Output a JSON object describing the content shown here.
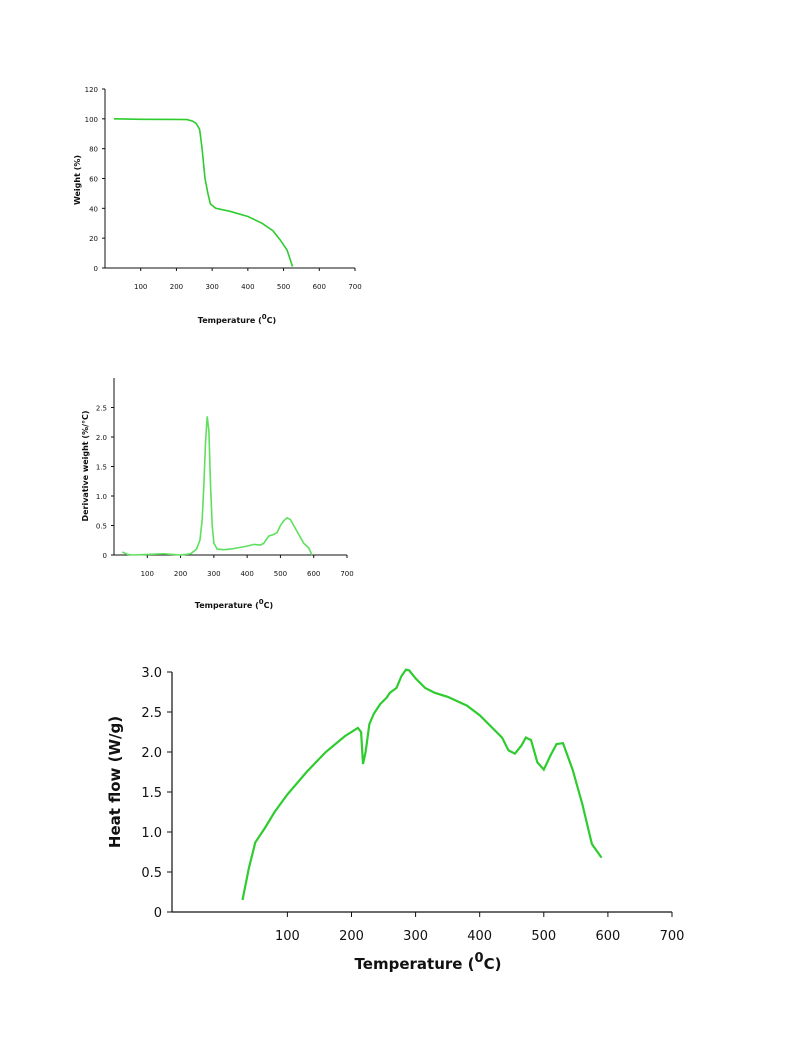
{
  "colors": {
    "series": "#2ecc2e",
    "axis": "#111111"
  },
  "chart_data": [
    {
      "type": "line",
      "title": "",
      "xlabel": "Temperature (",
      "xlabel_sup": "0",
      "xlabel_tail": "C)",
      "ylabel": "Weight (%)",
      "xlim": [
        0,
        700
      ],
      "ylim": [
        0,
        120
      ],
      "xticks": [
        100,
        200,
        300,
        400,
        500,
        600,
        700
      ],
      "yticks": [
        0,
        20,
        40,
        60,
        80,
        100,
        120
      ],
      "grid": false,
      "series": [
        {
          "x": [
            25,
            100,
            200,
            230,
            245,
            255,
            265,
            272,
            280,
            288,
            295,
            310,
            350,
            400,
            440,
            470,
            490,
            510,
            525
          ],
          "y": [
            100,
            99.7,
            99.6,
            99.5,
            98.5,
            97,
            93,
            80,
            60,
            50,
            43,
            40,
            38,
            34.5,
            30,
            25,
            19,
            12,
            1
          ]
        }
      ]
    },
    {
      "type": "line",
      "title": "",
      "xlabel": "Temperature (",
      "xlabel_sup": "0",
      "xlabel_tail": "C)",
      "ylabel": "Derivative weight (%/°C)",
      "xlim": [
        0,
        700
      ],
      "ylim": [
        0,
        3
      ],
      "xticks": [
        100,
        200,
        300,
        400,
        500,
        600,
        700
      ],
      "yticks": [
        0,
        0.5,
        1.0,
        1.5,
        2.0,
        2.5
      ],
      "ytick_labels": [
        "0",
        "0.5",
        "1.0",
        "1.5",
        "2.0",
        "2.5"
      ],
      "grid": false,
      "series": [
        {
          "x": [
            25,
            40,
            60,
            100,
            150,
            200,
            230,
            248,
            258,
            265,
            270,
            275,
            280,
            285,
            290,
            295,
            300,
            310,
            330,
            350,
            400,
            420,
            440,
            450,
            465,
            480,
            490,
            500,
            510,
            520,
            530,
            540,
            555,
            570,
            585,
            595
          ],
          "y": [
            0.05,
            0.01,
            0.0,
            0.01,
            0.02,
            0.0,
            0.02,
            0.1,
            0.25,
            0.6,
            1.2,
            1.9,
            2.35,
            2.1,
            1.2,
            0.5,
            0.2,
            0.1,
            0.09,
            0.1,
            0.15,
            0.18,
            0.17,
            0.2,
            0.32,
            0.35,
            0.38,
            0.5,
            0.58,
            0.63,
            0.6,
            0.5,
            0.35,
            0.2,
            0.12,
            0.0
          ]
        }
      ]
    },
    {
      "type": "line",
      "title": "",
      "xlabel": "Temperature (",
      "xlabel_sup": "0",
      "xlabel_tail": "C)",
      "ylabel": "Heat flow (W/g)",
      "xlim": [
        -80,
        700
      ],
      "ylim": [
        0,
        3.0
      ],
      "xticks": [
        100,
        200,
        300,
        400,
        500,
        600,
        700
      ],
      "yticks": [
        0,
        0.5,
        1.0,
        1.5,
        2.0,
        2.5,
        3.0
      ],
      "ytick_labels": [
        "0",
        "0.5",
        "1.0",
        "1.5",
        "2.0",
        "2.5",
        "3.0"
      ],
      "grid": false,
      "series": [
        {
          "x": [
            30,
            40,
            50,
            65,
            80,
            100,
            130,
            160,
            190,
            210,
            215,
            218,
            222,
            228,
            235,
            245,
            255,
            260,
            270,
            278,
            285,
            290,
            300,
            315,
            330,
            350,
            380,
            400,
            420,
            435,
            445,
            455,
            465,
            472,
            480,
            490,
            500,
            510,
            520,
            530,
            545,
            560,
            575,
            590
          ],
          "y": [
            0.15,
            0.55,
            0.87,
            1.05,
            1.25,
            1.47,
            1.75,
            2.0,
            2.2,
            2.3,
            2.25,
            1.85,
            2.0,
            2.35,
            2.48,
            2.6,
            2.68,
            2.74,
            2.8,
            2.95,
            3.03,
            3.02,
            2.92,
            2.8,
            2.74,
            2.69,
            2.58,
            2.46,
            2.3,
            2.18,
            2.02,
            1.98,
            2.08,
            2.18,
            2.15,
            1.87,
            1.78,
            1.95,
            2.1,
            2.11,
            1.78,
            1.35,
            0.85,
            0.68
          ]
        }
      ]
    }
  ]
}
